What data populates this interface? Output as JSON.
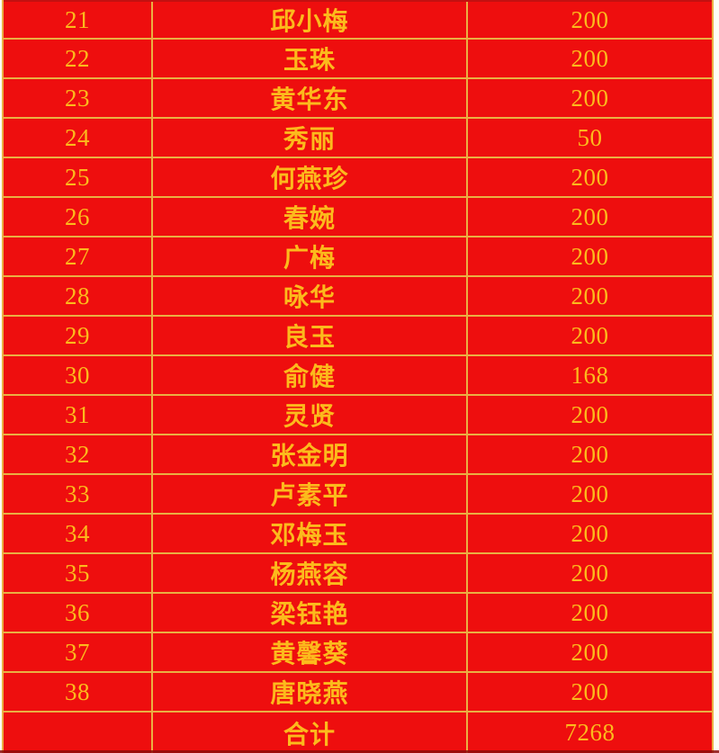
{
  "table": {
    "rows": [
      {
        "no": "21",
        "name": "邱小梅",
        "amount": "200"
      },
      {
        "no": "22",
        "name": "玉珠",
        "amount": "200"
      },
      {
        "no": "23",
        "name": "黄华东",
        "amount": "200"
      },
      {
        "no": "24",
        "name": "秀丽",
        "amount": "50"
      },
      {
        "no": "25",
        "name": "何燕珍",
        "amount": "200"
      },
      {
        "no": "26",
        "name": "春婉",
        "amount": "200"
      },
      {
        "no": "27",
        "name": "广梅",
        "amount": "200"
      },
      {
        "no": "28",
        "name": "咏华",
        "amount": "200"
      },
      {
        "no": "29",
        "name": "良玉",
        "amount": "200"
      },
      {
        "no": "30",
        "name": "俞健",
        "amount": "168"
      },
      {
        "no": "31",
        "name": "灵贤",
        "amount": "200"
      },
      {
        "no": "32",
        "name": "张金明",
        "amount": "200"
      },
      {
        "no": "33",
        "name": "卢素平",
        "amount": "200"
      },
      {
        "no": "34",
        "name": "邓梅玉",
        "amount": "200"
      },
      {
        "no": "35",
        "name": "杨燕容",
        "amount": "200"
      },
      {
        "no": "36",
        "name": "梁钰艳",
        "amount": "200"
      },
      {
        "no": "37",
        "name": "黄馨葵",
        "amount": "200"
      },
      {
        "no": "38",
        "name": "唐晓燕",
        "amount": "200"
      }
    ],
    "total": {
      "label": "合计",
      "amount": "7268"
    }
  },
  "colors": {
    "background_red": "#ee0e0e",
    "text_gold": "#fcba1c",
    "border_gold": "#eab043",
    "bottom_edge_dark": "#8c0b0b"
  }
}
